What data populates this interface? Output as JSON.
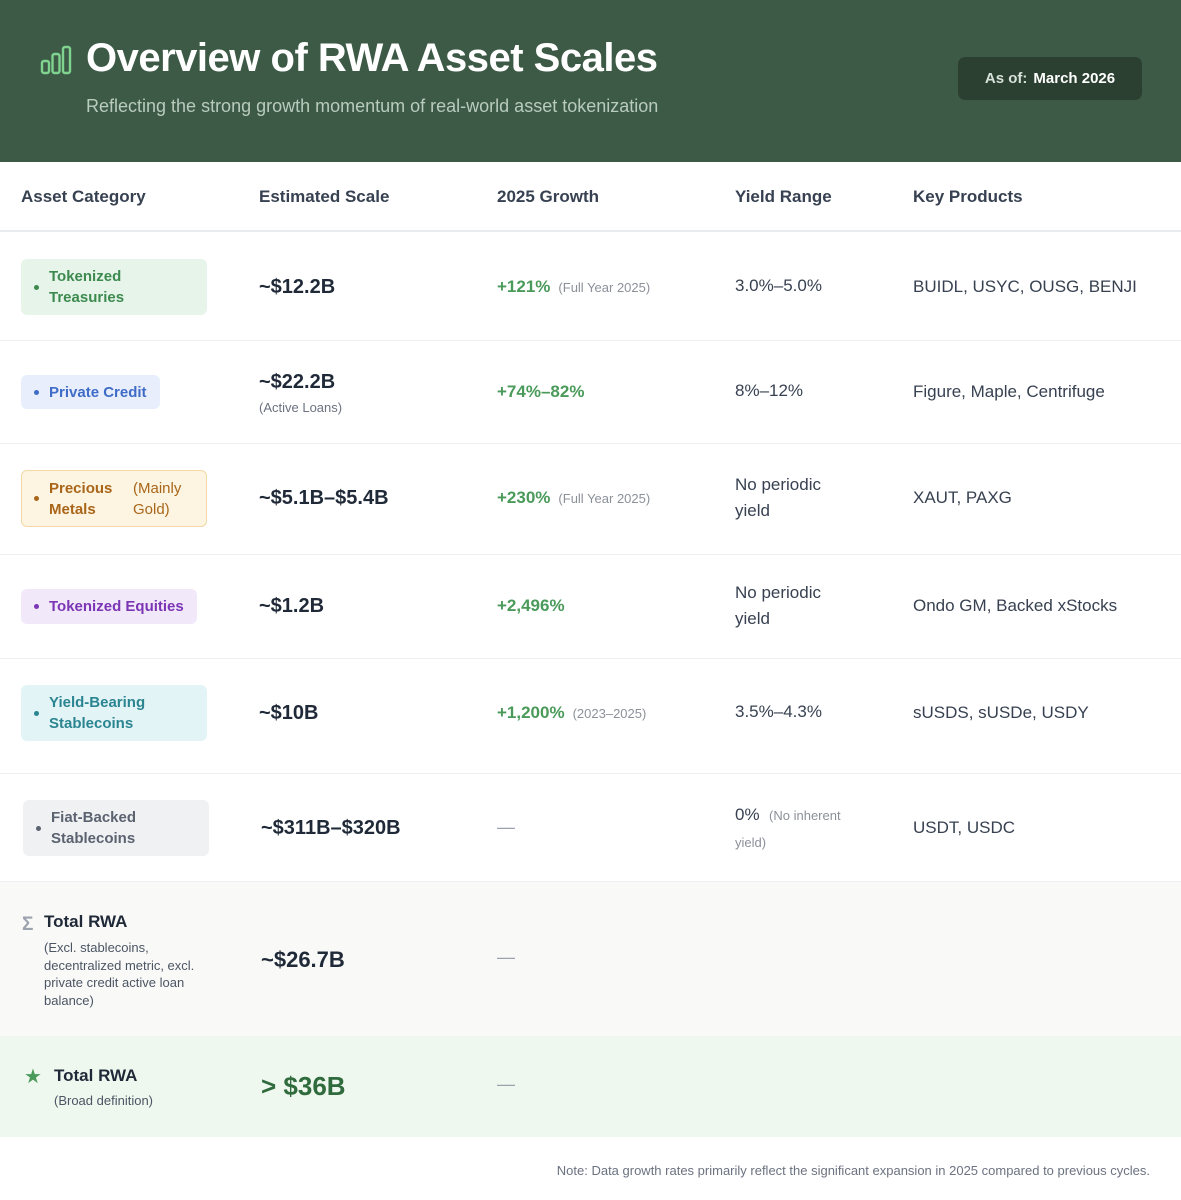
{
  "header": {
    "title": "Overview of RWA Asset Scales",
    "subtitle": "Reflecting the strong growth momentum of real-world asset tokenization",
    "as_of_label": "As of:",
    "as_of_value": "March 2026",
    "icon": "bar-chart-icon"
  },
  "columns": [
    "Asset Category",
    "Estimated Scale",
    "2025 Growth",
    "Yield Range",
    "Key Products"
  ],
  "rows": [
    {
      "category": "Tokenized Treasuries",
      "category_sub": "",
      "scale": "~$12.2B",
      "scale_note": "",
      "growth": "+121%",
      "growth_note": "(Full Year 2025)",
      "yield": "3.0%–5.0%",
      "yield_note": "",
      "products": "BUIDL, USYC, OUSG, BENJI",
      "colors": {
        "bg": "#e6f4ea",
        "fg": "#3d8a4f",
        "border": "#e6f4ea"
      }
    },
    {
      "category": "Private Credit",
      "category_sub": "",
      "scale": "~$22.2B",
      "scale_note": "(Active Loans)",
      "growth": "+74%–82%",
      "growth_note": "",
      "yield": "8%–12%",
      "yield_note": "",
      "products": "Figure, Maple, Centrifuge",
      "colors": {
        "bg": "#e8eefb",
        "fg": "#3f6cc7",
        "border": "#e8eefb"
      }
    },
    {
      "category": "Precious Metals",
      "category_sub": "(Mainly Gold)",
      "scale": "~$5.1B–$5.4B",
      "scale_note": "",
      "growth": "+230%",
      "growth_note": "(Full Year 2025)",
      "yield": "No periodic yield",
      "yield_note": "",
      "products": "XAUT, PAXG",
      "colors": {
        "bg": "#fdf4e1",
        "fg": "#a9661a",
        "border": "#f3d9a4"
      }
    },
    {
      "category": "Tokenized Equities",
      "category_sub": "",
      "scale": "~$1.2B",
      "scale_note": "",
      "growth": "+2,496%",
      "growth_note": "",
      "yield": "No periodic yield",
      "yield_note": "",
      "products": "Ondo GM, Backed xStocks",
      "colors": {
        "bg": "#f1e8fa",
        "fg": "#7c35b5",
        "border": "#f1e8fa"
      }
    },
    {
      "category": "Yield-Bearing Stablecoins",
      "category_sub": "",
      "scale": "~$10B",
      "scale_note": "",
      "growth": "+1,200%",
      "growth_note": "(2023–2025)",
      "yield": "3.5%–4.3%",
      "yield_note": "",
      "products": "sUSDS, sUSDe, USDY",
      "colors": {
        "bg": "#e2f4f6",
        "fg": "#2b8591",
        "border": "#e2f4f6"
      }
    },
    {
      "category": "Fiat-Backed Stablecoins",
      "category_sub": "",
      "scale": "~$311B–$320B",
      "scale_note": "",
      "growth": "—",
      "growth_note": "",
      "yield": "0%",
      "yield_note": "(No inherent yield)",
      "products": "USDT, USDC",
      "colors": {
        "bg": "#f0f1f3",
        "fg": "#5b6370",
        "border": "#f0f1f3"
      }
    }
  ],
  "totals": [
    {
      "icon": "sigma-icon",
      "icon_glyph": "Σ",
      "label": "Total RWA",
      "note": "(Excl. stablecoins, decentralized metric, excl. private credit active loan balance)",
      "scale": "~$26.7B",
      "growth": "—"
    },
    {
      "icon": "star-icon",
      "icon_glyph": "★",
      "label": "Total RWA",
      "note": "(Broad definition)",
      "scale": "> $36B",
      "growth": "—"
    }
  ],
  "footnote": "Note: Data growth rates primarily reflect the significant expansion in 2025 compared to previous cycles."
}
